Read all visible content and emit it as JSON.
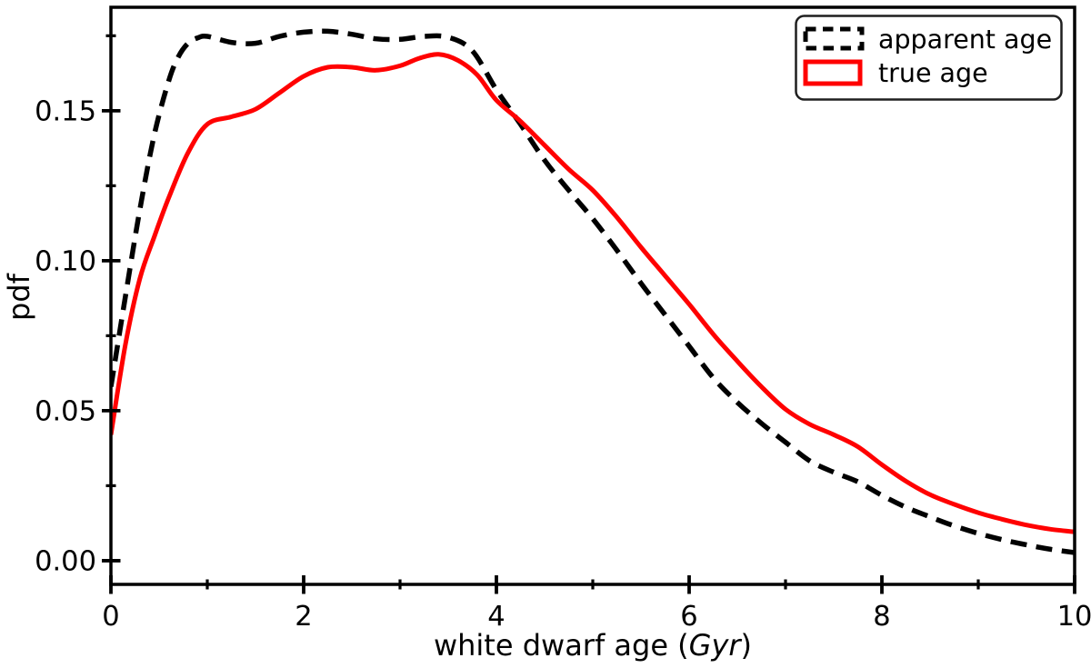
{
  "figure": {
    "background": "#ffffff"
  },
  "chart_data": {
    "type": "line",
    "title": "",
    "xlabel": "white dwarf age (Gyr)",
    "xlabel_parts": [
      {
        "text": "white dwarf age (",
        "italic": false
      },
      {
        "text": "Gyr",
        "italic": true
      },
      {
        "text": ")",
        "italic": false
      }
    ],
    "ylabel": "pdf",
    "xlim": [
      0,
      10
    ],
    "ylim": [
      -0.0079,
      0.1845
    ],
    "grid": false,
    "axis_color": "#000000",
    "x_major_ticks": [
      0,
      2,
      4,
      6,
      8,
      10
    ],
    "x_major_tick_labels": [
      "0",
      "2",
      "4",
      "6",
      "8",
      "10"
    ],
    "x_minor_ticks": [
      1,
      3,
      5,
      7,
      9
    ],
    "y_major_ticks": [
      0.0,
      0.05,
      0.1,
      0.15
    ],
    "y_major_tick_labels": [
      "0.00",
      "0.05",
      "0.10",
      "0.15"
    ],
    "y_minor_ticks": [
      0.025,
      0.075,
      0.125,
      0.175
    ],
    "legend": {
      "position": "upper right",
      "border_color": "#1f1f1f",
      "entries": [
        {
          "label": "apparent age",
          "color": "#000000",
          "linestyle": "dashed"
        },
        {
          "label": "true age",
          "color": "#ff0000",
          "linestyle": "solid"
        }
      ]
    },
    "series": [
      {
        "name": "apparent age",
        "color": "#000000",
        "linestyle": "dashed",
        "linewidth": 5.5,
        "x": [
          0,
          0.15,
          0.3,
          0.45,
          0.6,
          0.7,
          0.8,
          0.9,
          1.0,
          1.25,
          1.5,
          1.75,
          2.0,
          2.25,
          2.5,
          2.75,
          3.0,
          3.25,
          3.5,
          3.75,
          4.0,
          4.25,
          4.5,
          4.75,
          5.0,
          5.25,
          5.5,
          5.75,
          6.0,
          6.25,
          6.5,
          6.75,
          7.0,
          7.25,
          7.5,
          7.75,
          8.0,
          8.25,
          8.5,
          8.75,
          9.0,
          9.25,
          9.5,
          9.75,
          10
        ],
        "y": [
          0.058,
          0.088,
          0.117,
          0.142,
          0.16,
          0.168,
          0.1725,
          0.1743,
          0.1748,
          0.1728,
          0.1725,
          0.1748,
          0.1762,
          0.1765,
          0.1755,
          0.174,
          0.1738,
          0.1748,
          0.1745,
          0.17,
          0.157,
          0.1455,
          0.1335,
          0.1235,
          0.114,
          0.1035,
          0.0925,
          0.082,
          0.0715,
          0.061,
          0.0528,
          0.0458,
          0.0395,
          0.0333,
          0.0295,
          0.0263,
          0.0218,
          0.0178,
          0.0146,
          0.0116,
          0.0091,
          0.007,
          0.0053,
          0.0038,
          0.0027
        ]
      },
      {
        "name": "true age",
        "color": "#ff0000",
        "linestyle": "solid",
        "linewidth": 5,
        "x": [
          0,
          0.15,
          0.3,
          0.45,
          0.6,
          0.8,
          1.0,
          1.25,
          1.5,
          1.75,
          2.0,
          2.25,
          2.5,
          2.75,
          3.0,
          3.2,
          3.4,
          3.6,
          3.8,
          4.0,
          4.25,
          4.5,
          4.75,
          5.0,
          5.25,
          5.5,
          5.75,
          6.0,
          6.25,
          6.5,
          6.75,
          7.0,
          7.25,
          7.5,
          7.75,
          8.0,
          8.25,
          8.5,
          8.75,
          9.0,
          9.25,
          9.5,
          9.75,
          10
        ],
        "y": [
          0.042,
          0.072,
          0.094,
          0.108,
          0.121,
          0.136,
          0.1455,
          0.148,
          0.1505,
          0.156,
          0.1615,
          0.1645,
          0.1645,
          0.1635,
          0.165,
          0.1675,
          0.1688,
          0.1668,
          0.162,
          0.1535,
          0.1465,
          0.1385,
          0.1305,
          0.1235,
          0.1145,
          0.1045,
          0.095,
          0.0855,
          0.0755,
          0.0665,
          0.058,
          0.0505,
          0.0455,
          0.042,
          0.038,
          0.032,
          0.0265,
          0.022,
          0.0188,
          0.016,
          0.0138,
          0.0119,
          0.0105,
          0.0096
        ]
      }
    ]
  }
}
